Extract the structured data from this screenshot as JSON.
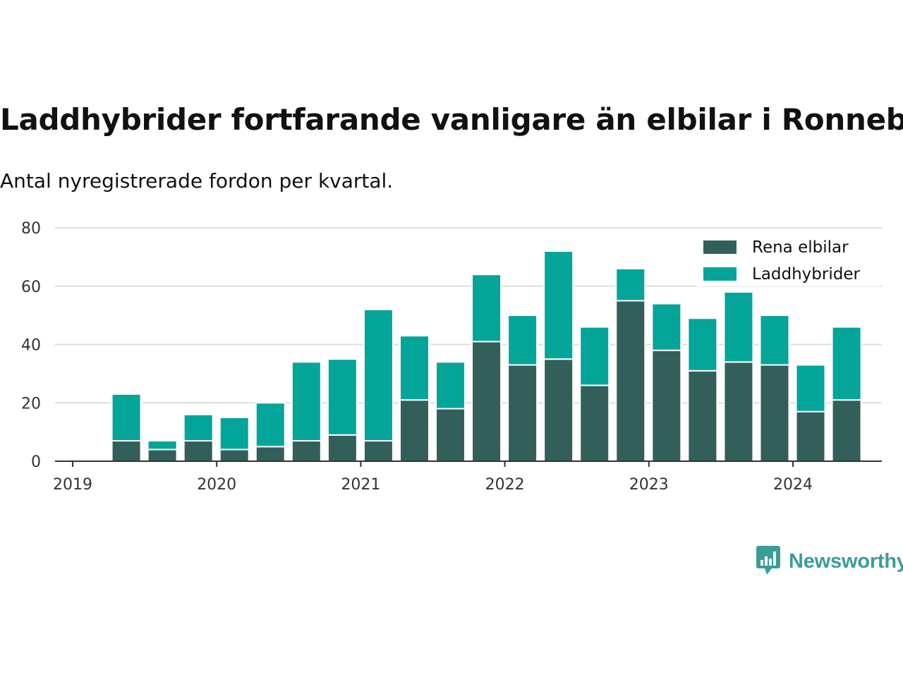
{
  "title": "Laddhybrider fortfarande vanligare än elbilar i Ronneby",
  "subtitle": "Antal nyregistrerade fordon per kvartal.",
  "colors": {
    "elbilar": "#335f5a",
    "laddhybrider": "#03a599",
    "grid": "#dddddd",
    "axis": "#333333",
    "brand": "#3a9d96"
  },
  "brand": {
    "name": "Newsworthy",
    "icon": "bar-chart-speech-bubble-icon"
  },
  "chart_data": {
    "type": "bar",
    "stacked": true,
    "categories": [
      "2019 Q2",
      "2019 Q3",
      "2019 Q4",
      "2020 Q1",
      "2020 Q2",
      "2020 Q3",
      "2020 Q4",
      "2021 Q1",
      "2021 Q2",
      "2021 Q3",
      "2021 Q4",
      "2022 Q1",
      "2022 Q2",
      "2022 Q3",
      "2022 Q4",
      "2023 Q1",
      "2023 Q2",
      "2023 Q3",
      "2023 Q4",
      "2024 Q1",
      "2024 Q2"
    ],
    "series": [
      {
        "name": "Rena elbilar",
        "values": [
          7,
          4,
          7,
          4,
          5,
          7,
          9,
          7,
          21,
          18,
          41,
          33,
          35,
          26,
          55,
          38,
          31,
          34,
          33,
          17,
          21
        ]
      },
      {
        "name": "Laddhybrider",
        "values": [
          16,
          3,
          9,
          11,
          15,
          27,
          26,
          45,
          22,
          16,
          23,
          17,
          37,
          20,
          11,
          16,
          18,
          24,
          17,
          16,
          25
        ]
      }
    ],
    "x_tick_labels": [
      "2019",
      "2020",
      "2021",
      "2022",
      "2023",
      "2024"
    ],
    "y_ticks": [
      0,
      20,
      40,
      60,
      80
    ],
    "ylim": [
      0,
      80
    ],
    "legend_position": "top-right",
    "title": "Laddhybrider fortfarande vanligare än elbilar i Ronneby",
    "xlabel": "",
    "ylabel": ""
  }
}
